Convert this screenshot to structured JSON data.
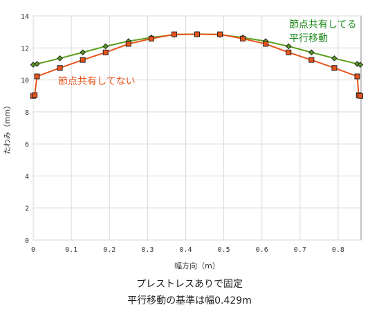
{
  "chart_data": {
    "type": "line",
    "xlabel": "幅方向（m）",
    "ylabel": "たわみ（mm）",
    "xlim": [
      0,
      0.86
    ],
    "ylim": [
      0,
      14
    ],
    "x_ticks": [
      0,
      0.1,
      0.2,
      0.3,
      0.4,
      0.5,
      0.6,
      0.7,
      0.8
    ],
    "x_tick_labels": [
      "0",
      "0.1",
      "0.2",
      "0.3",
      "0.4",
      "0.5",
      "0.6",
      "0.7",
      "0.8"
    ],
    "y_ticks": [
      0,
      2,
      4,
      6,
      8,
      10,
      12,
      14
    ],
    "y_tick_labels": [
      "0",
      "2",
      "4",
      "6",
      "8",
      "10",
      "12",
      "14"
    ],
    "grid": {
      "x": true,
      "y": true
    },
    "series": [
      {
        "name": "節点共有してる平行移動",
        "color": "#5a9e1e",
        "marker": "diamond",
        "x": [
          0,
          0.01,
          0.07,
          0.13,
          0.19,
          0.25,
          0.31,
          0.37,
          0.43,
          0.49,
          0.55,
          0.61,
          0.67,
          0.73,
          0.79,
          0.85,
          0.858
        ],
        "y": [
          10.95,
          11.0,
          11.35,
          11.72,
          12.1,
          12.42,
          12.65,
          12.82,
          12.87,
          12.82,
          12.65,
          12.42,
          12.1,
          11.72,
          11.35,
          11.0,
          10.95
        ]
      },
      {
        "name": "節点共有してない",
        "color": "#e8541c",
        "marker": "square",
        "x": [
          0,
          0.004,
          0.01,
          0.07,
          0.13,
          0.19,
          0.25,
          0.31,
          0.37,
          0.43,
          0.49,
          0.55,
          0.61,
          0.67,
          0.73,
          0.79,
          0.85,
          0.854,
          0.858
        ],
        "y": [
          9.0,
          9.05,
          10.22,
          10.75,
          11.25,
          11.72,
          12.25,
          12.58,
          12.85,
          12.85,
          12.85,
          12.58,
          12.25,
          11.72,
          11.25,
          10.75,
          10.22,
          9.05,
          9.0
        ]
      }
    ],
    "annotations": [
      {
        "lines": [
          "節点共有してる",
          "平行移動"
        ],
        "color": "#1e8c1e"
      },
      {
        "lines": [
          "節点共有してない"
        ],
        "color": "#e8541c"
      }
    ]
  },
  "caption": {
    "line1": "プレストレスありで固定",
    "line2": "平行移動の基準は幅0.429m"
  }
}
